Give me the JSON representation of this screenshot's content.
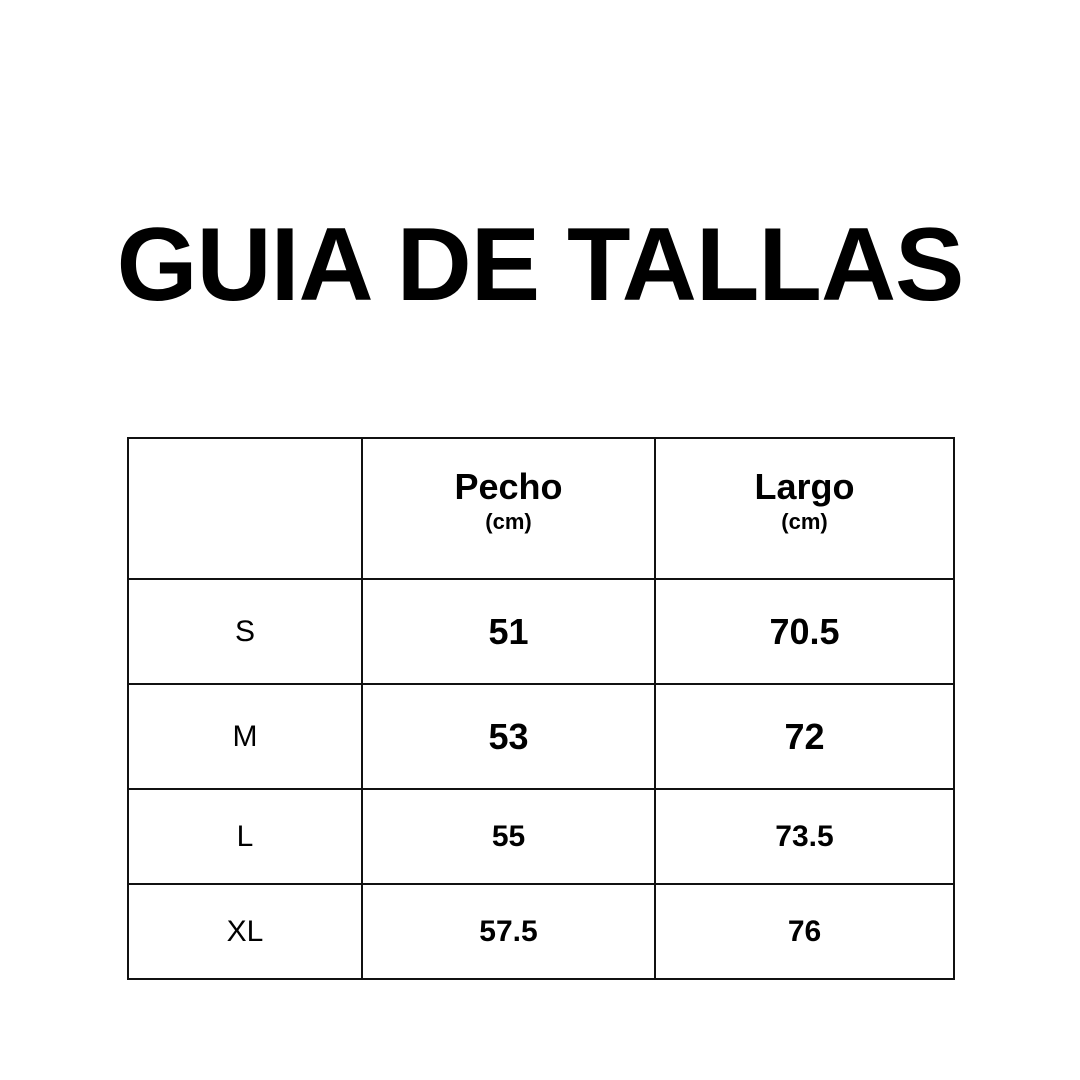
{
  "title": "GUIA DE TALLAS",
  "table": {
    "headers": [
      {
        "label": "",
        "unit": ""
      },
      {
        "label": "Pecho",
        "unit": "(cm)"
      },
      {
        "label": "Largo",
        "unit": "(cm)"
      }
    ],
    "rows": [
      {
        "size": "S",
        "pecho": "51",
        "largo": "70.5"
      },
      {
        "size": "M",
        "pecho": "53",
        "largo": "72"
      },
      {
        "size": "L",
        "pecho": "55",
        "largo": "73.5"
      },
      {
        "size": "XL",
        "pecho": "57.5",
        "largo": "76"
      }
    ]
  }
}
